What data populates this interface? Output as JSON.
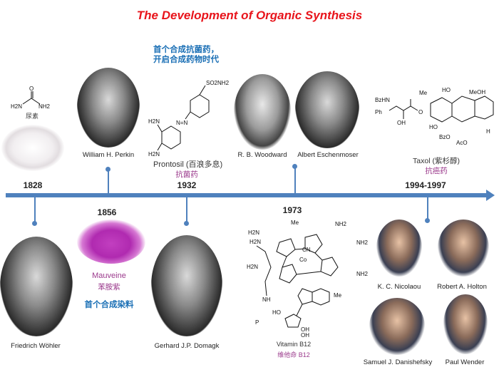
{
  "title": "The Development of Organic Synthesis",
  "colors": {
    "title": "#e8141b",
    "axis": "#4f81bd",
    "highlight": "#1a6fb5",
    "purple": "#9b3a8c"
  },
  "years": {
    "y1828": "1828",
    "y1856": "1856",
    "y1932": "1932",
    "y1973": "1973",
    "y1994": "1994-1997"
  },
  "urea": {
    "label": "尿素",
    "atoms": {
      "o": "O",
      "left": "H2N",
      "right": "NH2"
    }
  },
  "perkin": {
    "name": "William H. Perkin"
  },
  "wohler": {
    "name": "Friedrich Wöhler"
  },
  "mauveine": {
    "name": "Mauveine",
    "cn": "苯胺紫",
    "note": "首个合成染料"
  },
  "prontosil": {
    "note_line1": "首个合成抗菌药，",
    "note_line2": "开启合成药物时代",
    "name": "Prontosil (百浪多息)",
    "cn": "抗菌药",
    "atoms": {
      "so2nh2": "SO2NH2",
      "nn": "N=N",
      "amine1": "H2N",
      "amine2": "H2N"
    }
  },
  "domagk": {
    "name": "Gerhard J.P. Domagk"
  },
  "woodward": {
    "name": "R. B. Woodward"
  },
  "eschenmoser": {
    "name": "Albert Eschenmoser"
  },
  "b12": {
    "name": "Vitamin B12",
    "cn": "维他命 B12",
    "atoms": {
      "co": "Co",
      "cn": "CN",
      "nh2a": "H2N",
      "nh2b": "NH2",
      "nh2c": "NH2",
      "nh2d": "H2N",
      "nh2e": "NH2",
      "nh2f": "H2N",
      "nh": "NH",
      "me1": "Me",
      "me2": "Me",
      "ho": "HO",
      "oh1": "OH",
      "oh2": "OH",
      "p": "P"
    }
  },
  "taxol": {
    "name": "Taxol (紫杉醇)",
    "cn": "抗癌药",
    "atoms": {
      "bzhn": "BzHN",
      "ph": "Ph",
      "oh": "OH",
      "me": "Me",
      "ho": "HO",
      "meoh": "MeOH",
      "ho2": "HO",
      "bzo": "BzO",
      "aco": "AcO",
      "o": "O",
      "h": "H"
    }
  },
  "nicolaou": {
    "name": "K. C. Nicolaou"
  },
  "holton": {
    "name": "Robert A. Holton"
  },
  "danishefsky": {
    "name": "Samuel J. Danishefsky"
  },
  "wender": {
    "name": "Paul Wender"
  }
}
